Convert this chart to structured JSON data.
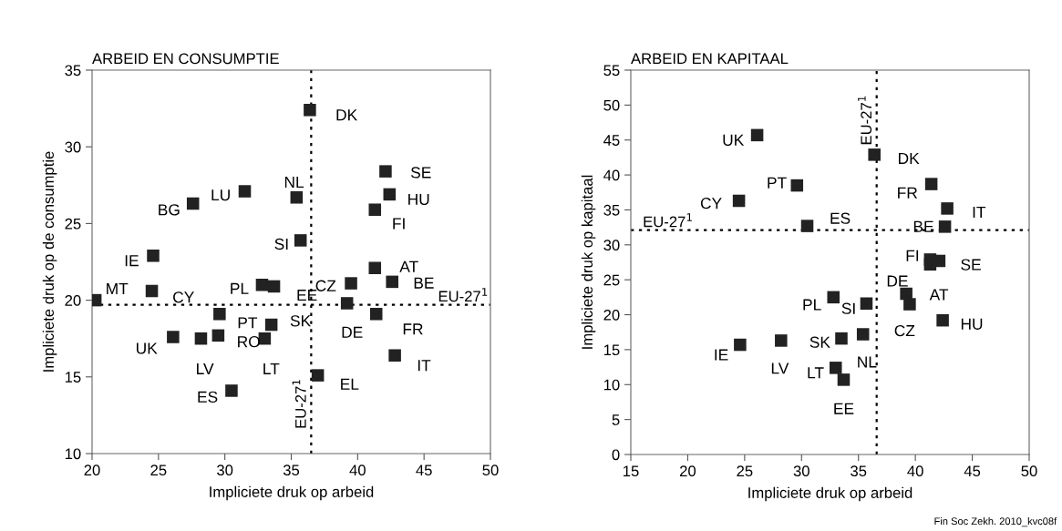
{
  "chart_data": [
    {
      "type": "scatter",
      "title": "ARBEID EN CONSUMPTIE",
      "xlabel": "Impliciete druk op arbeid",
      "ylabel": "Impliciete druk op de consumptie",
      "xlim": [
        20,
        50
      ],
      "xticks": [
        20,
        25,
        30,
        35,
        40,
        45,
        50
      ],
      "ylim": [
        10,
        35
      ],
      "yticks": [
        10,
        15,
        20,
        25,
        30,
        35
      ],
      "grid": false,
      "marker": "square",
      "series": [
        {
          "color": "#222222",
          "x": [
            36.4,
            42.1,
            42.4,
            41.3,
            31.5,
            35.4,
            27.6,
            35.7,
            24.6,
            41.3,
            42.6,
            39.5,
            32.8,
            33.7,
            20.25,
            24.5,
            39.2,
            29.6,
            41.4,
            33.5,
            26.1,
            28.2,
            29.5,
            33.0,
            42.8,
            37.0,
            30.5
          ],
          "values": [
            32.4,
            28.4,
            26.9,
            25.9,
            27.1,
            26.7,
            26.3,
            23.9,
            22.9,
            22.1,
            21.2,
            21.1,
            21.0,
            20.9,
            20.0,
            20.6,
            19.8,
            19.1,
            19.1,
            18.4,
            17.6,
            17.5,
            17.7,
            17.5,
            16.4,
            15.1,
            14.1
          ]
        }
      ],
      "ref_lines": [
        {
          "axis": "x",
          "value": 36.5,
          "label": "EU-27$^{1}$",
          "line_style": "dotted",
          "color": "#000000"
        },
        {
          "axis": "y",
          "value": 19.7,
          "label": "EU-27$^{1}$",
          "line_style": "dotted",
          "color": "#000000"
        }
      ],
      "annotations": [
        {
          "text": "DK",
          "x": 36.4,
          "y": 32.4
        },
        {
          "text": "SE",
          "x": 42.1,
          "y": 28.4
        },
        {
          "text": "HU",
          "x": 42.4,
          "y": 26.9
        },
        {
          "text": "FI",
          "x": 41.3,
          "y": 25.9
        },
        {
          "text": "LU",
          "x": 31.5,
          "y": 27.1
        },
        {
          "text": "NL",
          "x": 35.4,
          "y": 26.7
        },
        {
          "text": "BG",
          "x": 27.6,
          "y": 26.3
        },
        {
          "text": "SI",
          "x": 35.7,
          "y": 23.9
        },
        {
          "text": "IE",
          "x": 24.6,
          "y": 22.9
        },
        {
          "text": "AT",
          "x": 41.3,
          "y": 22.1
        },
        {
          "text": "BE",
          "x": 42.6,
          "y": 21.2
        },
        {
          "text": "CZ",
          "x": 39.5,
          "y": 21.1
        },
        {
          "text": "PL",
          "x": 32.8,
          "y": 21.0
        },
        {
          "text": "EE",
          "x": 33.7,
          "y": 20.9
        },
        {
          "text": "MT",
          "x": 20.25,
          "y": 20.0
        },
        {
          "text": "CY",
          "x": 24.5,
          "y": 20.6
        },
        {
          "text": "DE",
          "x": 39.2,
          "y": 19.8
        },
        {
          "text": "PT",
          "x": 29.6,
          "y": 19.1
        },
        {
          "text": "FR",
          "x": 41.4,
          "y": 19.1
        },
        {
          "text": "SK",
          "x": 33.5,
          "y": 18.4
        },
        {
          "text": "UK",
          "x": 26.1,
          "y": 17.6
        },
        {
          "text": "LV",
          "x": 28.2,
          "y": 17.5
        },
        {
          "text": "RO",
          "x": 29.5,
          "y": 17.7
        },
        {
          "text": "LT",
          "x": 33.0,
          "y": 17.5
        },
        {
          "text": "IT",
          "x": 42.8,
          "y": 16.4
        },
        {
          "text": "EL",
          "x": 37.0,
          "y": 15.1
        },
        {
          "text": "ES",
          "x": 30.5,
          "y": 14.1
        }
      ]
    },
    {
      "type": "scatter",
      "title": "ARBEID EN KAPITAAL",
      "xlabel": "Impliciete druk op arbeid",
      "ylabel": "Impliciete druk op kapitaal",
      "xlim": [
        15,
        50
      ],
      "xticks": [
        15,
        20,
        25,
        30,
        35,
        40,
        45,
        50
      ],
      "ylim": [
        0,
        55
      ],
      "yticks": [
        0,
        5,
        10,
        15,
        20,
        25,
        30,
        35,
        40,
        45,
        50,
        55
      ],
      "grid": false,
      "marker": "square",
      "series": [
        {
          "color": "#222222",
          "x": [
            26.1,
            36.4,
            29.6,
            41.4,
            24.5,
            42.8,
            30.5,
            42.6,
            41.3,
            42.1,
            41.3,
            39.2,
            39.5,
            32.8,
            35.7,
            42.4,
            35.4,
            33.5,
            24.6,
            28.2,
            33.0,
            33.7
          ],
          "values": [
            45.7,
            42.9,
            38.5,
            38.7,
            36.3,
            35.2,
            32.7,
            32.6,
            27.9,
            27.7,
            27.2,
            23.0,
            21.5,
            22.5,
            21.6,
            19.2,
            17.2,
            16.6,
            15.7,
            16.3,
            12.4,
            10.7
          ]
        }
      ],
      "ref_lines": [
        {
          "axis": "x",
          "value": 36.6,
          "label": "EU-27$^{1}$",
          "line_style": "dotted",
          "color": "#000000"
        },
        {
          "axis": "y",
          "value": 32.1,
          "label": "EU-27$^{1}$",
          "line_style": "dotted",
          "color": "#000000"
        }
      ],
      "annotations": [
        {
          "text": "UK",
          "x": 26.1,
          "y": 45.7
        },
        {
          "text": "DK",
          "x": 36.4,
          "y": 42.9
        },
        {
          "text": "PT",
          "x": 29.6,
          "y": 38.5
        },
        {
          "text": "FR",
          "x": 41.4,
          "y": 38.7
        },
        {
          "text": "CY",
          "x": 24.5,
          "y": 36.3
        },
        {
          "text": "IT",
          "x": 42.8,
          "y": 35.2
        },
        {
          "text": "ES",
          "x": 30.5,
          "y": 32.7
        },
        {
          "text": "BE",
          "x": 42.6,
          "y": 32.6
        },
        {
          "text": "FI",
          "x": 41.3,
          "y": 27.9
        },
        {
          "text": "SE",
          "x": 42.1,
          "y": 27.7
        },
        {
          "text": "AT",
          "x": 41.3,
          "y": 27.2
        },
        {
          "text": "DE",
          "x": 39.2,
          "y": 23.0
        },
        {
          "text": "CZ",
          "x": 39.5,
          "y": 21.5
        },
        {
          "text": "PL",
          "x": 32.8,
          "y": 22.5
        },
        {
          "text": "SI",
          "x": 35.7,
          "y": 21.6
        },
        {
          "text": "HU",
          "x": 42.4,
          "y": 19.2
        },
        {
          "text": "NL",
          "x": 35.4,
          "y": 17.2
        },
        {
          "text": "SK",
          "x": 33.5,
          "y": 16.6
        },
        {
          "text": "IE",
          "x": 24.6,
          "y": 15.7
        },
        {
          "text": "LV",
          "x": 28.2,
          "y": 16.3
        },
        {
          "text": "LT",
          "x": 33.0,
          "y": 12.4
        },
        {
          "text": "EE",
          "x": 33.7,
          "y": 10.7
        },
        "Fin Soc Zekh. 2010_kvc08f"
      ]
    }
  ]
}
